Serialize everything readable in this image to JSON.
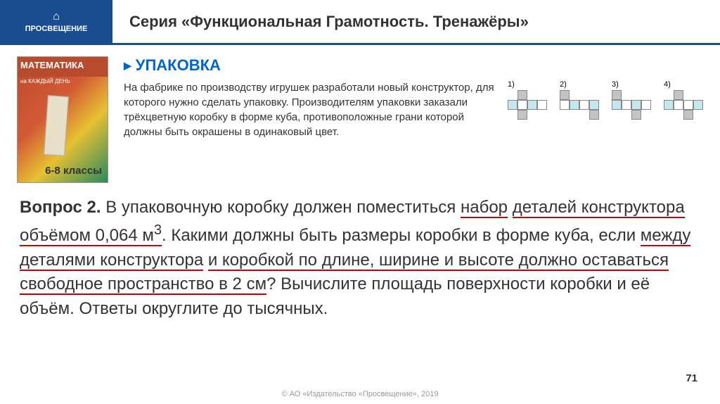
{
  "header": {
    "logo_text": "ПРОСВЕЩЕНИЕ",
    "title": "Серия «Функциональная Грамотность. Тренажёры»"
  },
  "book": {
    "title": "МАТЕМАТИКА",
    "subtitle": "на КАЖДЫЙ ДЕНЬ",
    "grades": "6-8 классы"
  },
  "section": {
    "title": "УПАКОВКА",
    "intro": "На фабрике по производству игрушек разработали новый конструктор, для которого нужно сделать упаковку. Производителям упаковки заказали трёхцветную коробку в форме куба, противоположные грани которой должны быть окрашены в одинаковый цвет."
  },
  "nets": [
    {
      "label": "1)",
      "cells": [
        "",
        "c-gray",
        "",
        "",
        "c-blue",
        "c-white",
        "c-blue",
        "c-white",
        "",
        "c-gray",
        "",
        ""
      ]
    },
    {
      "label": "2)",
      "cells": [
        "c-gray",
        "",
        "",
        "",
        "c-white",
        "c-blue",
        "c-white",
        "c-blue",
        "",
        "",
        "",
        "c-gray"
      ]
    },
    {
      "label": "3)",
      "cells": [
        "c-gray",
        "",
        "",
        "",
        "c-blue",
        "c-white",
        "c-blue",
        "c-white",
        "",
        "",
        "c-gray",
        ""
      ]
    },
    {
      "label": "4)",
      "cells": [
        "",
        "c-gray",
        "",
        "",
        "c-blue",
        "c-white",
        "c-white",
        "c-blue",
        "",
        "",
        "c-gray",
        ""
      ]
    }
  ],
  "question": {
    "prefix": "Вопрос 2.",
    "p1": " В упаковочную коробку должен поместиться ",
    "u1": "набор",
    "p2": " ",
    "u2": "деталей конструктора объёмом 0,064 м",
    "sup": "3",
    "p3": ". Какими должны быть размеры коробки в форме куба, если ",
    "u3": "между деталями конструктора",
    "p4": " ",
    "u4": "и коробкой по длине, ширине и высоте должно оставаться",
    "p5": " ",
    "u5": "свободное пространство в 2 см",
    "p6": "? Вычислите площадь поверхности коробки и её объём. Ответы округлите до тысячных."
  },
  "page_number": "71",
  "copyright": "© АО «Издательство «Просвещение», 2019",
  "colors": {
    "brand_blue": "#1a4d8f",
    "link_blue": "#0066cc",
    "underline_red": "#c00",
    "net_gray": "#c4c4c4",
    "net_blue": "#c4e8f0"
  }
}
